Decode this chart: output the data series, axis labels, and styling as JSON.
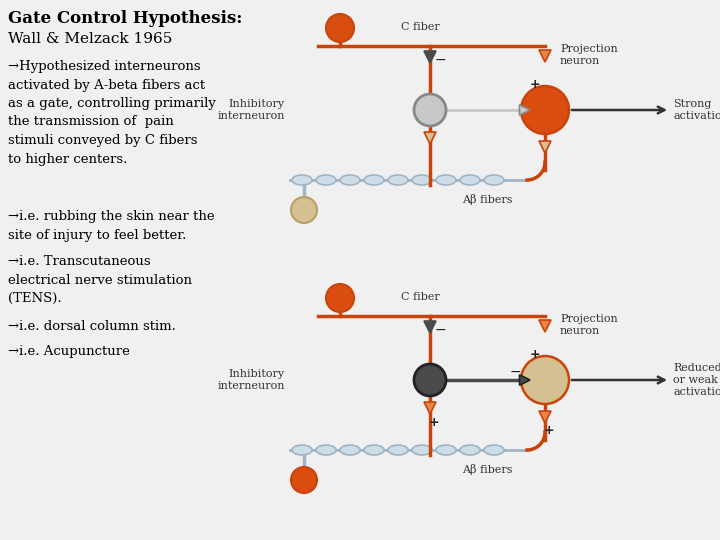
{
  "title": "Gate Control Hypothesis:",
  "subtitle": "Wall & Melzack 1965",
  "text_lines": [
    "→Hypothesized interneurons\nactivated by A-beta fibers act\nas a gate, controlling primarily\nthe transmission of  pain\nstimuli conveyed by C fibers\nto higher centers.",
    "→i.e. rubbing the skin near the\nsite of injury to feel better.",
    "→i.e. Transcutaneous\nelectrical nerve stimulation\n(TENS).",
    "→i.e. dorsal column stim.",
    "→i.e. Acupuncture"
  ],
  "bg_color": "#f0f0f0",
  "text_color": "#000000",
  "orange_dark": "#c8440a",
  "orange_light": "#e8854a",
  "orange_ball": "#d94e10",
  "gray_dark": "#4a4a4a",
  "gray_medium": "#888888",
  "gray_light": "#c8c8c8",
  "tan_light": "#d4c090",
  "blue_gray": "#a0b4c4",
  "diagram_lw": 2.5,
  "fiber_lw": 2.0
}
